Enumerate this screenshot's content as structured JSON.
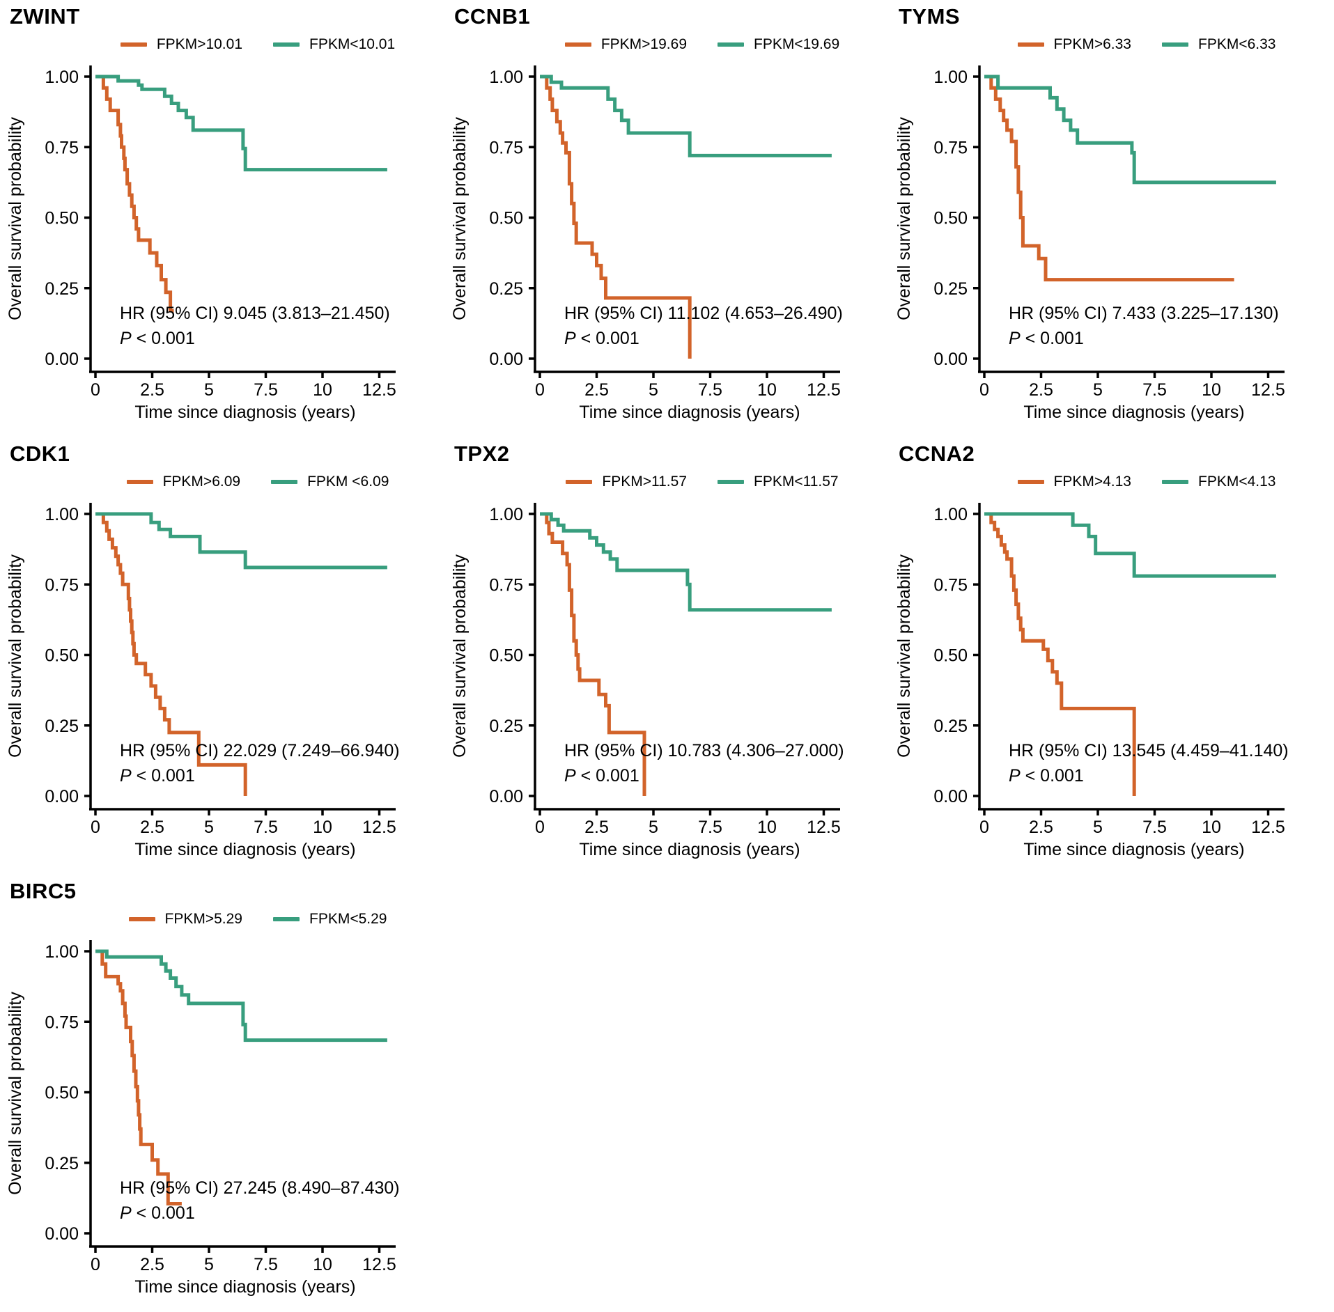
{
  "figure": {
    "xlabel": "Time since diagnosis (years)",
    "ylabel": "Overall survival probability",
    "colors": {
      "high": "#D2632A",
      "low": "#389E7E"
    },
    "x_ticks": [
      0,
      2.5,
      5,
      7.5,
      10,
      12.5
    ],
    "x_tick_labels": [
      "0",
      "2.5",
      "5",
      "7.5",
      "10",
      "12.5"
    ],
    "y_ticks": [
      1,
      0.75,
      0.5,
      0.25,
      0
    ],
    "y_tick_labels": [
      "1.00",
      "0.75",
      "0.50",
      "0.25",
      "0.00"
    ],
    "x_range": [
      0,
      12.9
    ],
    "y_range": [
      0,
      1
    ]
  },
  "chart_data": [
    {
      "type": "line",
      "subtype": "kaplan-meier-step",
      "title": "ZWINT",
      "legend": [
        {
          "label": "FPKM>10.01",
          "key": "high"
        },
        {
          "label": "FPKM<10.01",
          "key": "low"
        }
      ],
      "annotation": {
        "hr": "HR (95% CI) 9.045 (3.813–21.450)",
        "p_italic": "P",
        "p_rest": " < 0.001"
      },
      "series": [
        {
          "name": "FPKM>10.01",
          "key": "high",
          "end_x": 3.45,
          "points": [
            [
              0,
              1
            ],
            [
              0.35,
              0.96
            ],
            [
              0.5,
              0.92
            ],
            [
              0.65,
              0.88
            ],
            [
              1.0,
              0.83
            ],
            [
              1.1,
              0.79
            ],
            [
              1.15,
              0.75
            ],
            [
              1.25,
              0.71
            ],
            [
              1.3,
              0.67
            ],
            [
              1.4,
              0.62
            ],
            [
              1.5,
              0.58
            ],
            [
              1.6,
              0.54
            ],
            [
              1.7,
              0.5
            ],
            [
              1.8,
              0.46
            ],
            [
              1.9,
              0.42
            ],
            [
              2.4,
              0.375
            ],
            [
              2.7,
              0.33
            ],
            [
              2.9,
              0.28
            ],
            [
              3.1,
              0.235
            ],
            [
              3.3,
              0.17
            ]
          ]
        },
        {
          "name": "FPKM<10.01",
          "key": "low",
          "end_x": 12.85,
          "points": [
            [
              0,
              1
            ],
            [
              1.0,
              0.985
            ],
            [
              1.9,
              0.97
            ],
            [
              2.05,
              0.955
            ],
            [
              3.05,
              0.93
            ],
            [
              3.35,
              0.905
            ],
            [
              3.65,
              0.88
            ],
            [
              4.0,
              0.855
            ],
            [
              4.3,
              0.81
            ],
            [
              6.5,
              0.745
            ],
            [
              6.6,
              0.67
            ]
          ]
        }
      ]
    },
    {
      "type": "line",
      "subtype": "kaplan-meier-step",
      "title": "CCNB1",
      "legend": [
        {
          "label": "FPKM>19.69",
          "key": "high"
        },
        {
          "label": "FPKM<19.69",
          "key": "low"
        }
      ],
      "annotation": {
        "hr": "HR (95% CI) 11.102 (4.653–26.490)",
        "p_italic": "P",
        "p_rest": " < 0.001"
      },
      "series": [
        {
          "name": "FPKM>19.69",
          "key": "high",
          "end_x": 6.6,
          "points": [
            [
              0,
              1
            ],
            [
              0.3,
              0.96
            ],
            [
              0.45,
              0.92
            ],
            [
              0.55,
              0.88
            ],
            [
              0.75,
              0.84
            ],
            [
              0.9,
              0.8
            ],
            [
              1.0,
              0.765
            ],
            [
              1.15,
              0.73
            ],
            [
              1.3,
              0.62
            ],
            [
              1.4,
              0.55
            ],
            [
              1.5,
              0.48
            ],
            [
              1.6,
              0.41
            ],
            [
              2.3,
              0.37
            ],
            [
              2.5,
              0.33
            ],
            [
              2.7,
              0.285
            ],
            [
              2.9,
              0.215
            ],
            [
              6.6,
              0
            ]
          ]
        },
        {
          "name": "FPKM<19.69",
          "key": "low",
          "end_x": 12.85,
          "points": [
            [
              0,
              1
            ],
            [
              0.5,
              0.98
            ],
            [
              0.95,
              0.96
            ],
            [
              3.0,
              0.92
            ],
            [
              3.3,
              0.88
            ],
            [
              3.6,
              0.845
            ],
            [
              3.9,
              0.8
            ],
            [
              6.6,
              0.72
            ]
          ]
        }
      ]
    },
    {
      "type": "line",
      "subtype": "kaplan-meier-step",
      "title": "TYMS",
      "legend": [
        {
          "label": "FPKM>6.33",
          "key": "high"
        },
        {
          "label": "FPKM<6.33",
          "key": "low"
        }
      ],
      "annotation": {
        "hr": "HR (95% CI) 7.433 (3.225–17.130)",
        "p_italic": "P",
        "p_rest": " < 0.001"
      },
      "series": [
        {
          "name": "FPKM>6.33",
          "key": "high",
          "end_x": 11.0,
          "points": [
            [
              0,
              1
            ],
            [
              0.3,
              0.96
            ],
            [
              0.5,
              0.92
            ],
            [
              0.7,
              0.88
            ],
            [
              0.85,
              0.845
            ],
            [
              1.0,
              0.81
            ],
            [
              1.2,
              0.77
            ],
            [
              1.4,
              0.68
            ],
            [
              1.5,
              0.59
            ],
            [
              1.6,
              0.5
            ],
            [
              1.7,
              0.4
            ],
            [
              2.4,
              0.355
            ],
            [
              2.7,
              0.28
            ]
          ]
        },
        {
          "name": "FPKM<6.33",
          "key": "low",
          "end_x": 12.85,
          "points": [
            [
              0,
              1
            ],
            [
              0.6,
              0.96
            ],
            [
              2.9,
              0.925
            ],
            [
              3.2,
              0.885
            ],
            [
              3.5,
              0.845
            ],
            [
              3.8,
              0.81
            ],
            [
              4.1,
              0.765
            ],
            [
              6.5,
              0.73
            ],
            [
              6.6,
              0.625
            ]
          ]
        }
      ]
    },
    {
      "type": "line",
      "subtype": "kaplan-meier-step",
      "title": "CDK1",
      "legend": [
        {
          "label": "FPKM>6.09",
          "key": "high"
        },
        {
          "label": "FPKM <6.09",
          "key": "low"
        }
      ],
      "annotation": {
        "hr": "HR (95% CI) 22.029 (7.249–66.940)",
        "p_italic": "P",
        "p_rest": " < 0.001"
      },
      "series": [
        {
          "name": "FPKM>6.09",
          "key": "high",
          "end_x": 6.6,
          "points": [
            [
              0,
              1
            ],
            [
              0.35,
              0.97
            ],
            [
              0.5,
              0.94
            ],
            [
              0.6,
              0.91
            ],
            [
              0.75,
              0.88
            ],
            [
              0.9,
              0.85
            ],
            [
              1.0,
              0.82
            ],
            [
              1.1,
              0.79
            ],
            [
              1.2,
              0.75
            ],
            [
              1.45,
              0.7
            ],
            [
              1.5,
              0.66
            ],
            [
              1.55,
              0.62
            ],
            [
              1.6,
              0.58
            ],
            [
              1.65,
              0.54
            ],
            [
              1.7,
              0.5
            ],
            [
              1.8,
              0.47
            ],
            [
              2.2,
              0.43
            ],
            [
              2.45,
              0.39
            ],
            [
              2.65,
              0.35
            ],
            [
              2.85,
              0.31
            ],
            [
              3.05,
              0.27
            ],
            [
              3.25,
              0.225
            ],
            [
              4.55,
              0.11
            ],
            [
              6.6,
              0
            ]
          ]
        },
        {
          "name": "FPKM <6.09",
          "key": "low",
          "end_x": 12.85,
          "points": [
            [
              0,
              1
            ],
            [
              2.45,
              0.97
            ],
            [
              2.8,
              0.945
            ],
            [
              3.3,
              0.92
            ],
            [
              4.6,
              0.865
            ],
            [
              6.6,
              0.81
            ]
          ]
        }
      ]
    },
    {
      "type": "line",
      "subtype": "kaplan-meier-step",
      "title": "TPX2",
      "legend": [
        {
          "label": "FPKM>11.57",
          "key": "high"
        },
        {
          "label": "FPKM<11.57",
          "key": "low"
        }
      ],
      "annotation": {
        "hr": "HR (95% CI) 10.783 (4.306–27.000)",
        "p_italic": "P",
        "p_rest": " < 0.001"
      },
      "series": [
        {
          "name": "FPKM>11.57",
          "key": "high",
          "end_x": 4.6,
          "points": [
            [
              0,
              1
            ],
            [
              0.3,
              0.97
            ],
            [
              0.4,
              0.93
            ],
            [
              0.55,
              0.9
            ],
            [
              1.0,
              0.86
            ],
            [
              1.2,
              0.82
            ],
            [
              1.3,
              0.73
            ],
            [
              1.4,
              0.64
            ],
            [
              1.5,
              0.55
            ],
            [
              1.6,
              0.5
            ],
            [
              1.68,
              0.45
            ],
            [
              1.75,
              0.41
            ],
            [
              2.6,
              0.36
            ],
            [
              2.9,
              0.32
            ],
            [
              3.05,
              0.225
            ],
            [
              4.6,
              0
            ]
          ]
        },
        {
          "name": "FPKM<11.57",
          "key": "low",
          "end_x": 12.85,
          "points": [
            [
              0,
              1
            ],
            [
              0.5,
              0.98
            ],
            [
              0.8,
              0.96
            ],
            [
              1.05,
              0.94
            ],
            [
              2.2,
              0.915
            ],
            [
              2.5,
              0.89
            ],
            [
              2.8,
              0.865
            ],
            [
              3.1,
              0.84
            ],
            [
              3.4,
              0.8
            ],
            [
              6.5,
              0.75
            ],
            [
              6.6,
              0.66
            ]
          ]
        }
      ]
    },
    {
      "type": "line",
      "subtype": "kaplan-meier-step",
      "title": "CCNA2",
      "legend": [
        {
          "label": "FPKM>4.13",
          "key": "high"
        },
        {
          "label": "FPKM<4.13",
          "key": "low"
        }
      ],
      "annotation": {
        "hr": "HR (95% CI) 13.545 (4.459–41.140)",
        "p_italic": "P",
        "p_rest": " < 0.001"
      },
      "series": [
        {
          "name": "FPKM>4.13",
          "key": "high",
          "end_x": 6.6,
          "points": [
            [
              0,
              1
            ],
            [
              0.3,
              0.97
            ],
            [
              0.45,
              0.945
            ],
            [
              0.6,
              0.92
            ],
            [
              0.75,
              0.89
            ],
            [
              0.9,
              0.865
            ],
            [
              1.0,
              0.84
            ],
            [
              1.2,
              0.78
            ],
            [
              1.3,
              0.73
            ],
            [
              1.4,
              0.68
            ],
            [
              1.5,
              0.63
            ],
            [
              1.6,
              0.59
            ],
            [
              1.7,
              0.55
            ],
            [
              2.6,
              0.52
            ],
            [
              2.8,
              0.48
            ],
            [
              3.0,
              0.44
            ],
            [
              3.2,
              0.4
            ],
            [
              3.4,
              0.31
            ],
            [
              6.6,
              0
            ]
          ]
        },
        {
          "name": "FPKM<4.13",
          "key": "low",
          "end_x": 12.85,
          "points": [
            [
              0,
              1
            ],
            [
              3.9,
              0.96
            ],
            [
              4.6,
              0.92
            ],
            [
              4.9,
              0.86
            ],
            [
              6.6,
              0.78
            ]
          ]
        }
      ]
    },
    {
      "type": "line",
      "subtype": "kaplan-meier-step",
      "title": "BIRC5",
      "legend": [
        {
          "label": "FPKM>5.29",
          "key": "high"
        },
        {
          "label": "FPKM<5.29",
          "key": "low"
        }
      ],
      "annotation": {
        "hr": "HR (95% CI) 27.245 (8.490–87.430)",
        "p_italic": "P",
        "p_rest": " < 0.001"
      },
      "series": [
        {
          "name": "FPKM>5.29",
          "key": "high",
          "end_x": 3.8,
          "points": [
            [
              0,
              1
            ],
            [
              0.3,
              0.955
            ],
            [
              0.45,
              0.91
            ],
            [
              1.0,
              0.885
            ],
            [
              1.1,
              0.86
            ],
            [
              1.2,
              0.815
            ],
            [
              1.3,
              0.77
            ],
            [
              1.35,
              0.73
            ],
            [
              1.55,
              0.68
            ],
            [
              1.62,
              0.63
            ],
            [
              1.7,
              0.575
            ],
            [
              1.78,
              0.52
            ],
            [
              1.85,
              0.47
            ],
            [
              1.9,
              0.42
            ],
            [
              1.95,
              0.37
            ],
            [
              2.0,
              0.315
            ],
            [
              2.5,
              0.26
            ],
            [
              2.75,
              0.21
            ],
            [
              3.2,
              0.105
            ]
          ]
        },
        {
          "name": "FPKM<5.29",
          "key": "low",
          "end_x": 12.85,
          "points": [
            [
              0,
              1
            ],
            [
              0.5,
              0.98
            ],
            [
              2.9,
              0.955
            ],
            [
              3.1,
              0.93
            ],
            [
              3.3,
              0.905
            ],
            [
              3.55,
              0.875
            ],
            [
              3.8,
              0.845
            ],
            [
              4.1,
              0.815
            ],
            [
              6.5,
              0.74
            ],
            [
              6.6,
              0.685
            ]
          ]
        }
      ]
    }
  ]
}
